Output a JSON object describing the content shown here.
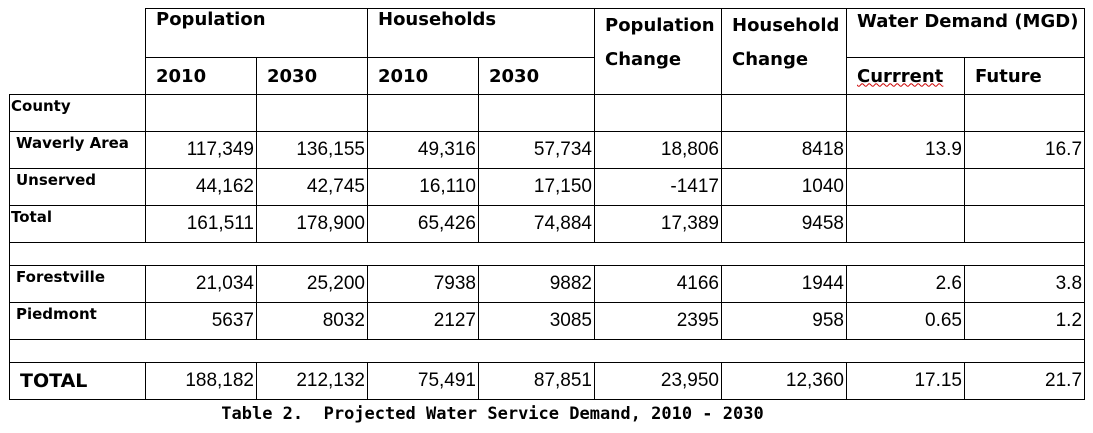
{
  "table": {
    "header": {
      "population": "Population",
      "households": "Households",
      "population_change": "Population Change",
      "household_change": "Household Change",
      "water_demand": "Water Demand (MGD)",
      "years": [
        "2010",
        "2030",
        "2010",
        "2030"
      ],
      "current": "Currrent",
      "future": "Future"
    },
    "sections": [
      [
        {
          "label": "County"
        },
        {
          "label": "Waverly Area",
          "values": [
            "117,349",
            "136,155",
            "49,316",
            "57,734",
            "18,806",
            "8418",
            "13.9",
            "16.7"
          ]
        },
        {
          "label": "Unserved",
          "values": [
            "44,162",
            "42,745",
            "16,110",
            "17,150",
            "-1417",
            "1040"
          ]
        },
        {
          "label": "Total",
          "values": [
            "161,511",
            "178,900",
            "65,426",
            "74,884",
            "17,389",
            "9458"
          ]
        }
      ],
      [
        {
          "label": "Forestville",
          "values": [
            "21,034",
            "25,200",
            "7938",
            "9882",
            "4166",
            "1944",
            "2.6",
            "3.8"
          ]
        },
        {
          "label": "Piedmont",
          "values": [
            "5637",
            "8032",
            "2127",
            "3085",
            "2395",
            "958",
            "0.65",
            "1.2"
          ]
        }
      ],
      [
        {
          "label": "TOTAL",
          "values": [
            "188,182",
            "212,132",
            "75,491",
            "87,851",
            "23,950",
            "12,360",
            "17.15",
            "21.7"
          ]
        }
      ]
    ],
    "caption": "Table 2.  Projected Water Service Demand, 2010 - 2030"
  }
}
